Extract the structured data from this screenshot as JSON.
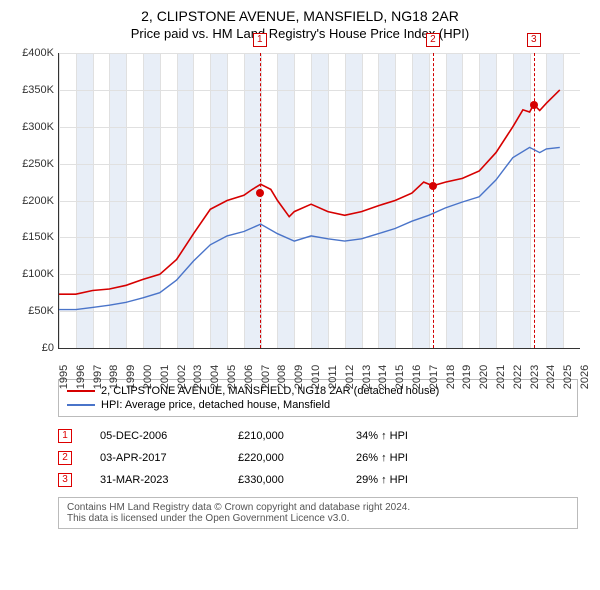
{
  "title": "2, CLIPSTONE AVENUE, MANSFIELD, NG18 2AR",
  "subtitle": "Price paid vs. HM Land Registry's House Price Index (HPI)",
  "chart": {
    "type": "line",
    "background_color": "#ffffff",
    "grid_color": "#e0e0e0",
    "band_color": "#e8eef7",
    "axis_color": "#333333",
    "x_min": 1995,
    "x_max": 2026,
    "y_min": 0,
    "y_max": 400000,
    "y_ticks": [
      0,
      50000,
      100000,
      150000,
      200000,
      250000,
      300000,
      350000,
      400000
    ],
    "y_tick_labels": [
      "£0",
      "£50K",
      "£100K",
      "£150K",
      "£200K",
      "£250K",
      "£300K",
      "£350K",
      "£400K"
    ],
    "x_ticks": [
      1995,
      1996,
      1997,
      1998,
      1999,
      2000,
      2001,
      2002,
      2003,
      2004,
      2005,
      2006,
      2007,
      2008,
      2009,
      2010,
      2011,
      2012,
      2013,
      2014,
      2015,
      2016,
      2017,
      2018,
      2019,
      2020,
      2021,
      2022,
      2023,
      2024,
      2025,
      2026
    ],
    "alt_band_start": 1996,
    "markers": [
      {
        "n": "1",
        "x": 2006.95,
        "price": 210000
      },
      {
        "n": "2",
        "x": 2017.25,
        "price": 220000
      },
      {
        "n": "3",
        "x": 2023.25,
        "price": 330000
      }
    ],
    "marker_color": "#d00000",
    "series": [
      {
        "name": "2, CLIPSTONE AVENUE, MANSFIELD, NG18 2AR (detached house)",
        "color": "#d60000",
        "line_width": 1.6,
        "points": [
          [
            1995,
            73000
          ],
          [
            1996,
            73000
          ],
          [
            1997,
            78000
          ],
          [
            1998,
            80000
          ],
          [
            1999,
            85000
          ],
          [
            2000,
            93000
          ],
          [
            2001,
            100000
          ],
          [
            2002,
            120000
          ],
          [
            2003,
            155000
          ],
          [
            2004,
            188000
          ],
          [
            2005,
            200000
          ],
          [
            2006,
            207000
          ],
          [
            2006.5,
            215000
          ],
          [
            2007,
            222000
          ],
          [
            2007.6,
            215000
          ],
          [
            2008,
            200000
          ],
          [
            2008.7,
            178000
          ],
          [
            2009,
            185000
          ],
          [
            2010,
            195000
          ],
          [
            2011,
            185000
          ],
          [
            2012,
            180000
          ],
          [
            2013,
            185000
          ],
          [
            2014,
            193000
          ],
          [
            2015,
            200000
          ],
          [
            2016,
            210000
          ],
          [
            2016.7,
            225000
          ],
          [
            2017.25,
            220000
          ],
          [
            2018,
            225000
          ],
          [
            2019,
            230000
          ],
          [
            2020,
            240000
          ],
          [
            2021,
            265000
          ],
          [
            2022,
            300000
          ],
          [
            2022.6,
            323000
          ],
          [
            2023,
            320000
          ],
          [
            2023.25,
            330000
          ],
          [
            2023.6,
            322000
          ],
          [
            2024,
            332000
          ],
          [
            2024.8,
            350000
          ]
        ]
      },
      {
        "name": "HPI: Average price, detached house, Mansfield",
        "color": "#4a74c9",
        "line_width": 1.4,
        "points": [
          [
            1995,
            52000
          ],
          [
            1996,
            52000
          ],
          [
            1997,
            55000
          ],
          [
            1998,
            58000
          ],
          [
            1999,
            62000
          ],
          [
            2000,
            68000
          ],
          [
            2001,
            75000
          ],
          [
            2002,
            92000
          ],
          [
            2003,
            118000
          ],
          [
            2004,
            140000
          ],
          [
            2005,
            152000
          ],
          [
            2006,
            158000
          ],
          [
            2007,
            168000
          ],
          [
            2008,
            155000
          ],
          [
            2009,
            145000
          ],
          [
            2010,
            152000
          ],
          [
            2011,
            148000
          ],
          [
            2012,
            145000
          ],
          [
            2013,
            148000
          ],
          [
            2014,
            155000
          ],
          [
            2015,
            162000
          ],
          [
            2016,
            172000
          ],
          [
            2017,
            180000
          ],
          [
            2018,
            190000
          ],
          [
            2019,
            198000
          ],
          [
            2020,
            205000
          ],
          [
            2021,
            228000
          ],
          [
            2022,
            258000
          ],
          [
            2023,
            272000
          ],
          [
            2023.6,
            265000
          ],
          [
            2024,
            270000
          ],
          [
            2024.8,
            272000
          ]
        ]
      }
    ],
    "axis_fontsize": 11
  },
  "legend": {
    "items": [
      {
        "color": "#d60000",
        "label": "2, CLIPSTONE AVENUE, MANSFIELD, NG18 2AR (detached house)"
      },
      {
        "color": "#4a74c9",
        "label": "HPI: Average price, detached house, Mansfield"
      }
    ]
  },
  "events": [
    {
      "n": "1",
      "date": "05-DEC-2006",
      "price": "£210,000",
      "diff": "34% ↑ HPI"
    },
    {
      "n": "2",
      "date": "03-APR-2017",
      "price": "£220,000",
      "diff": "26% ↑ HPI"
    },
    {
      "n": "3",
      "date": "31-MAR-2023",
      "price": "£330,000",
      "diff": "29% ↑ HPI"
    }
  ],
  "footer": {
    "line1": "Contains HM Land Registry data © Crown copyright and database right 2024.",
    "line2": "This data is licensed under the Open Government Licence v3.0."
  }
}
